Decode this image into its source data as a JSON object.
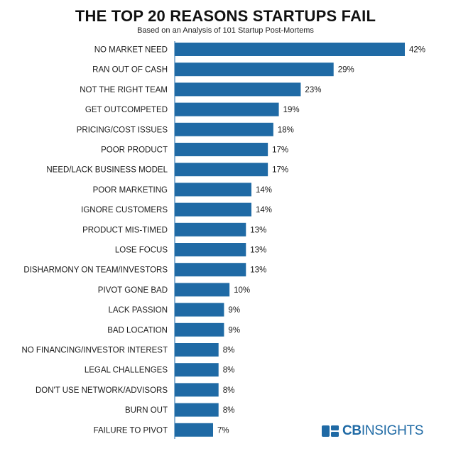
{
  "chart_data": {
    "type": "bar",
    "orientation": "horizontal",
    "title": "THE TOP 20 REASONS STARTUPS FAIL",
    "subtitle": "Based on an Analysis of 101 Startup Post-Mortems",
    "categories": [
      "NO MARKET NEED",
      "RAN OUT OF CASH",
      "NOT THE RIGHT TEAM",
      "GET OUTCOMPETED",
      "PRICING/COST ISSUES",
      "POOR PRODUCT",
      "NEED/LACK BUSINESS MODEL",
      "POOR MARKETING",
      "IGNORE CUSTOMERS",
      "PRODUCT MIS-TIMED",
      "LOSE FOCUS",
      "DISHARMONY ON TEAM/INVESTORS",
      "PIVOT GONE BAD",
      "LACK PASSION",
      "BAD LOCATION",
      "NO FINANCING/INVESTOR INTEREST",
      "LEGAL CHALLENGES",
      "DON'T USE NETWORK/ADVISORS",
      "BURN OUT",
      "FAILURE TO PIVOT"
    ],
    "values": [
      42,
      29,
      23,
      19,
      18,
      17,
      17,
      14,
      14,
      13,
      13,
      13,
      10,
      9,
      9,
      8,
      8,
      8,
      8,
      7
    ],
    "value_labels": [
      "42%",
      "29%",
      "23%",
      "19%",
      "18%",
      "17%",
      "17%",
      "14%",
      "14%",
      "13%",
      "13%",
      "13%",
      "10%",
      "9%",
      "9%",
      "8%",
      "8%",
      "8%",
      "8%",
      "7%"
    ],
    "unit": "%",
    "xlim": [
      0,
      42
    ],
    "xlabel": "",
    "ylabel": "",
    "grid": false,
    "legend": "none",
    "bar_color": "#1f6aa5"
  },
  "branding": {
    "logo_cb": "CB",
    "logo_insights": "INSIGHTS",
    "logo_icon": "cb-insights-logo-icon",
    "logo_color": "#1f6aa5"
  }
}
